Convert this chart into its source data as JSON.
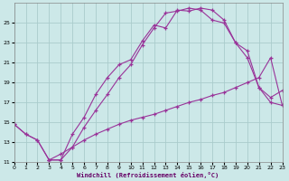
{
  "xlabel": "Windchill (Refroidissement éolien,°C)",
  "bg_color": "#cce8e8",
  "grid_color": "#aacccc",
  "line_color": "#993399",
  "marker": "+",
  "xmin": 0,
  "xmax": 23,
  "ymin": 11,
  "ymax": 27,
  "yticks": [
    11,
    13,
    15,
    17,
    19,
    21,
    23,
    25
  ],
  "xticks": [
    0,
    1,
    2,
    3,
    4,
    5,
    6,
    7,
    8,
    9,
    10,
    11,
    12,
    13,
    14,
    15,
    16,
    17,
    18,
    19,
    20,
    21,
    22,
    23
  ],
  "line1_x": [
    0,
    1,
    2,
    3,
    4,
    5,
    6,
    7,
    8,
    9,
    10,
    11,
    12,
    13,
    14,
    15,
    16,
    17,
    18,
    19,
    20,
    21,
    22,
    23
  ],
  "line1_y": [
    14.8,
    13.8,
    13.2,
    11.2,
    11.2,
    13.8,
    15.5,
    17.8,
    19.5,
    20.8,
    21.3,
    23.2,
    24.8,
    24.5,
    26.3,
    26.2,
    26.5,
    26.3,
    25.3,
    23.0,
    22.2,
    18.5,
    17.0,
    16.7
  ],
  "line2_x": [
    0,
    1,
    2,
    3,
    4,
    5,
    6,
    7,
    8,
    9,
    10,
    11,
    12,
    13,
    14,
    15,
    16,
    17,
    18,
    19,
    20,
    21,
    22,
    23
  ],
  "line2_y": [
    14.8,
    13.8,
    13.2,
    11.2,
    11.8,
    12.5,
    13.2,
    13.8,
    14.3,
    14.8,
    15.2,
    15.5,
    15.8,
    16.2,
    16.6,
    17.0,
    17.3,
    17.7,
    18.0,
    18.5,
    19.0,
    19.5,
    21.5,
    16.7
  ],
  "line3_x": [
    3,
    4,
    5,
    6,
    7,
    8,
    9,
    10,
    11,
    12,
    13,
    14,
    15,
    16,
    17,
    18,
    19,
    20,
    21,
    22,
    23
  ],
  "line3_y": [
    11.2,
    11.2,
    12.5,
    14.5,
    16.2,
    17.8,
    19.5,
    20.8,
    22.8,
    24.5,
    26.0,
    26.2,
    26.5,
    26.3,
    25.3,
    25.0,
    23.0,
    21.5,
    18.5,
    17.5,
    18.2
  ]
}
